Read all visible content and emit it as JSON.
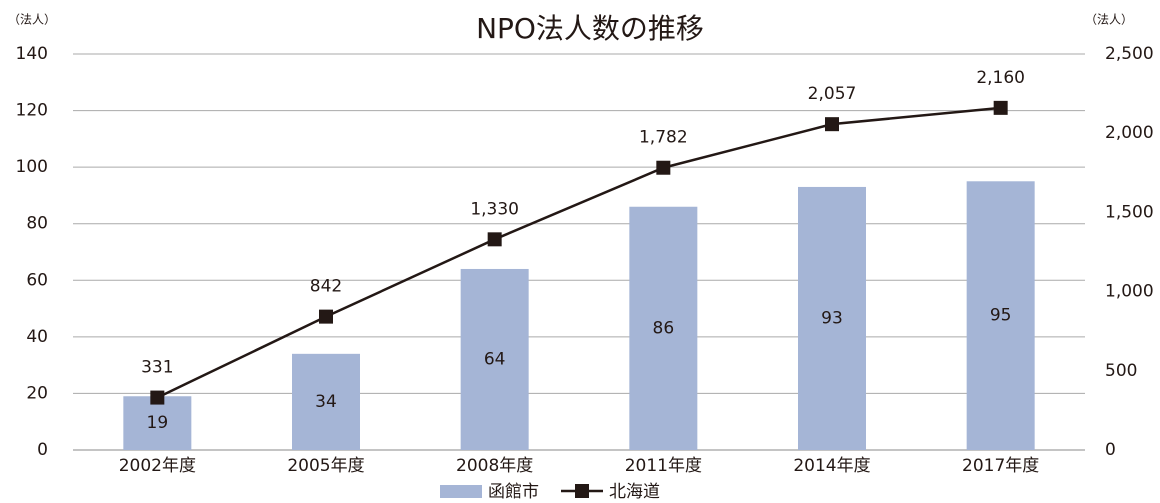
{
  "chart_data": {
    "type": "bar-line",
    "title": "NPO法人数の推移",
    "y_unit": "（法人）",
    "y2_unit": "（法人）",
    "categories": [
      "2002年度",
      "2005年度",
      "2008年度",
      "2011年度",
      "2014年度",
      "2017年度"
    ],
    "series": [
      {
        "name": "函館市",
        "type": "bar",
        "color": "#a5b5d6",
        "values": [
          19,
          34,
          64,
          86,
          93,
          95
        ]
      },
      {
        "name": "北海道",
        "type": "line",
        "axis": "y2",
        "color": "#231815",
        "values": [
          331,
          842,
          1330,
          1782,
          2057,
          2160
        ],
        "value_labels": [
          "331",
          "842",
          "1,330",
          "1,782",
          "2,057",
          "2,160"
        ]
      }
    ],
    "ylim": [
      0,
      140
    ],
    "yticks": [
      0,
      20,
      40,
      60,
      80,
      100,
      120,
      140
    ],
    "y2lim": [
      0,
      2500
    ],
    "y2ticks": [
      0,
      500,
      {
        "value": 1000,
        "label": "1,000"
      },
      {
        "value": 1500,
        "label": "1,500"
      },
      {
        "value": 2000,
        "label": "2,000"
      },
      {
        "value": 2500,
        "label": "2,500"
      }
    ],
    "grid": true,
    "legend": "bottom"
  }
}
